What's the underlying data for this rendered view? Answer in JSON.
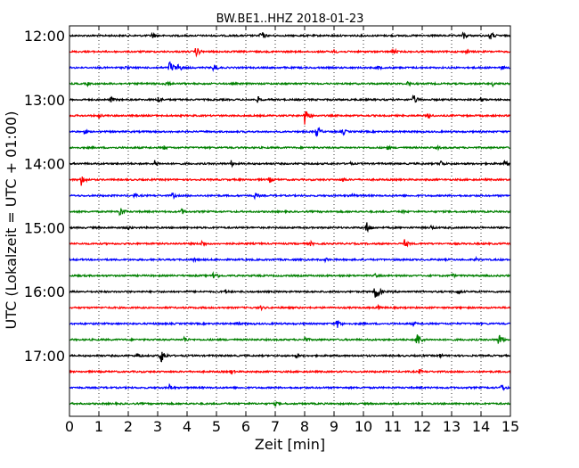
{
  "chart_data": {
    "type": "line",
    "title": "BW.BE1..HHZ 2018-01-23",
    "xlabel": "Zeit  [min]",
    "ylabel": "UTC (Lokalzeit = UTC + 01:00)",
    "xlim": [
      0,
      15
    ],
    "xticks": [
      0,
      1,
      2,
      3,
      4,
      5,
      6,
      7,
      8,
      9,
      10,
      11,
      12,
      13,
      14,
      15
    ],
    "xtick_labels": [
      "0",
      "1",
      "2",
      "3",
      "4",
      "5",
      "6",
      "7",
      "8",
      "9",
      "10",
      "11",
      "12",
      "13",
      "14",
      "15"
    ],
    "grid": "vertical-dotted",
    "trace_interval_min": 15,
    "trace_colors": [
      "#000000",
      "#ff0000",
      "#0000ff",
      "#008000"
    ],
    "traces": [
      {
        "start": "12:00",
        "events": [
          [
            2.8,
            4
          ],
          [
            6.5,
            6
          ],
          [
            13.4,
            5
          ],
          [
            14.3,
            6
          ]
        ]
      },
      {
        "start": "12:15",
        "events": [
          [
            4.3,
            6
          ],
          [
            9.0,
            3
          ],
          [
            11.0,
            4
          ],
          [
            13.5,
            3
          ]
        ]
      },
      {
        "start": "12:30",
        "events": [
          [
            1.9,
            3
          ],
          [
            3.4,
            9
          ],
          [
            3.7,
            5
          ],
          [
            4.9,
            5
          ],
          [
            10.5,
            3
          ],
          [
            14.7,
            3
          ]
        ]
      },
      {
        "start": "12:45",
        "events": [
          [
            0.6,
            3
          ],
          [
            3.3,
            5
          ],
          [
            11.5,
            3
          ],
          [
            14.4,
            3
          ]
        ]
      },
      {
        "start": "13:00",
        "events": [
          [
            1.4,
            4
          ],
          [
            3.0,
            5
          ],
          [
            6.4,
            4
          ],
          [
            11.7,
            6
          ],
          [
            14.0,
            3
          ]
        ]
      },
      {
        "start": "13:15",
        "events": [
          [
            1.0,
            3
          ],
          [
            8.0,
            10
          ],
          [
            12.2,
            4
          ]
        ]
      },
      {
        "start": "13:30",
        "events": [
          [
            0.5,
            3
          ],
          [
            8.4,
            7
          ],
          [
            9.3,
            4
          ]
        ]
      },
      {
        "start": "13:45",
        "events": [
          [
            3.2,
            3
          ],
          [
            10.8,
            3
          ],
          [
            12.5,
            3
          ]
        ]
      },
      {
        "start": "14:00",
        "events": [
          [
            2.9,
            4
          ],
          [
            5.5,
            4
          ],
          [
            9.5,
            3
          ],
          [
            12.6,
            5
          ],
          [
            14.8,
            4
          ]
        ]
      },
      {
        "start": "14:15",
        "events": [
          [
            0.4,
            7
          ],
          [
            6.8,
            4
          ],
          [
            9.3,
            3
          ]
        ]
      },
      {
        "start": "14:30",
        "events": [
          [
            2.2,
            3
          ],
          [
            3.5,
            4
          ],
          [
            6.3,
            4
          ],
          [
            9.6,
            3
          ]
        ]
      },
      {
        "start": "14:45",
        "events": [
          [
            1.7,
            7
          ],
          [
            3.8,
            4
          ],
          [
            11.3,
            3
          ]
        ]
      },
      {
        "start": "15:00",
        "events": [
          [
            2.0,
            3
          ],
          [
            10.1,
            7
          ],
          [
            12.3,
            3
          ]
        ]
      },
      {
        "start": "15:15",
        "events": [
          [
            4.5,
            4
          ],
          [
            8.2,
            3
          ],
          [
            11.4,
            5
          ]
        ]
      },
      {
        "start": "15:30",
        "events": [
          [
            4.2,
            3
          ],
          [
            8.7,
            3
          ],
          [
            13.8,
            3
          ]
        ]
      },
      {
        "start": "15:45",
        "events": [
          [
            4.9,
            6
          ],
          [
            10.4,
            3
          ],
          [
            13.0,
            3
          ]
        ]
      },
      {
        "start": "16:00",
        "events": [
          [
            5.3,
            3
          ],
          [
            10.4,
            11
          ],
          [
            13.2,
            4
          ]
        ]
      },
      {
        "start": "16:15",
        "events": [
          [
            6.5,
            3
          ],
          [
            10.5,
            3
          ]
        ]
      },
      {
        "start": "16:30",
        "events": [
          [
            5.7,
            3
          ],
          [
            9.1,
            6
          ],
          [
            11.7,
            3
          ]
        ]
      },
      {
        "start": "16:45",
        "events": [
          [
            3.9,
            4
          ],
          [
            8.0,
            4
          ],
          [
            11.8,
            10
          ],
          [
            14.6,
            8
          ]
        ]
      },
      {
        "start": "17:00",
        "events": [
          [
            2.3,
            4
          ],
          [
            3.1,
            10
          ],
          [
            7.7,
            3
          ],
          [
            12.6,
            3
          ]
        ]
      },
      {
        "start": "17:15",
        "events": [
          [
            5.5,
            3
          ],
          [
            11.9,
            3
          ]
        ]
      },
      {
        "start": "17:30",
        "events": [
          [
            3.4,
            4
          ],
          [
            14.7,
            5
          ]
        ]
      },
      {
        "start": "17:45",
        "events": [
          [
            7.0,
            3
          ]
        ]
      }
    ],
    "ytick_labels": [
      "12:00",
      "13:00",
      "14:00",
      "15:00",
      "16:00",
      "17:00"
    ]
  }
}
